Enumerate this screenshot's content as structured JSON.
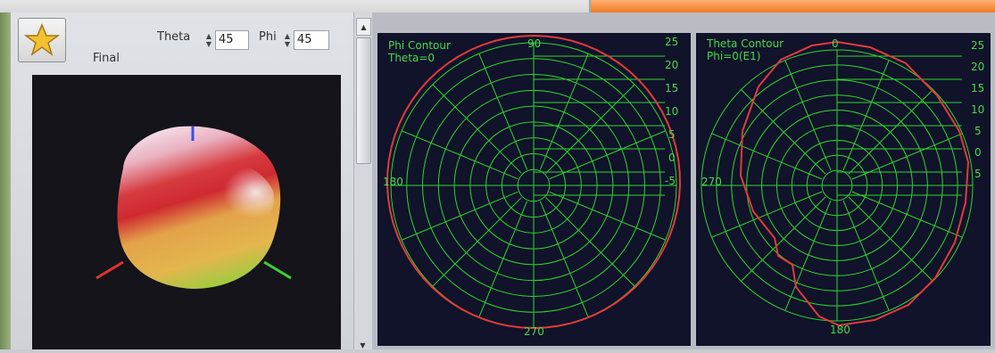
{
  "left_panel": {
    "final_label": "Final",
    "theta_label": "Theta",
    "theta_value": "45",
    "phi_label": "Phi",
    "phi_value": "45"
  },
  "phi_plot": {
    "title": "Phi Contour",
    "subtitle": "Theta=0",
    "angle_labels": {
      "top": "90",
      "left": "180",
      "bottom": "270"
    },
    "radial_labels": [
      "25",
      "20",
      "15",
      "10",
      "5",
      "0",
      "-5"
    ]
  },
  "theta_plot": {
    "title": "Theta Contour",
    "subtitle": "Phi=0(E1)",
    "angle_labels": {
      "top": "0",
      "left": "270",
      "bottom": "180"
    },
    "radial_labels": [
      "25",
      "20",
      "15",
      "10",
      "5",
      "0",
      "5"
    ]
  },
  "colors": {
    "grid": "#2fd52f",
    "curve": "#e23a3a",
    "text": "#49d849",
    "plot_bg": "#10132a"
  }
}
